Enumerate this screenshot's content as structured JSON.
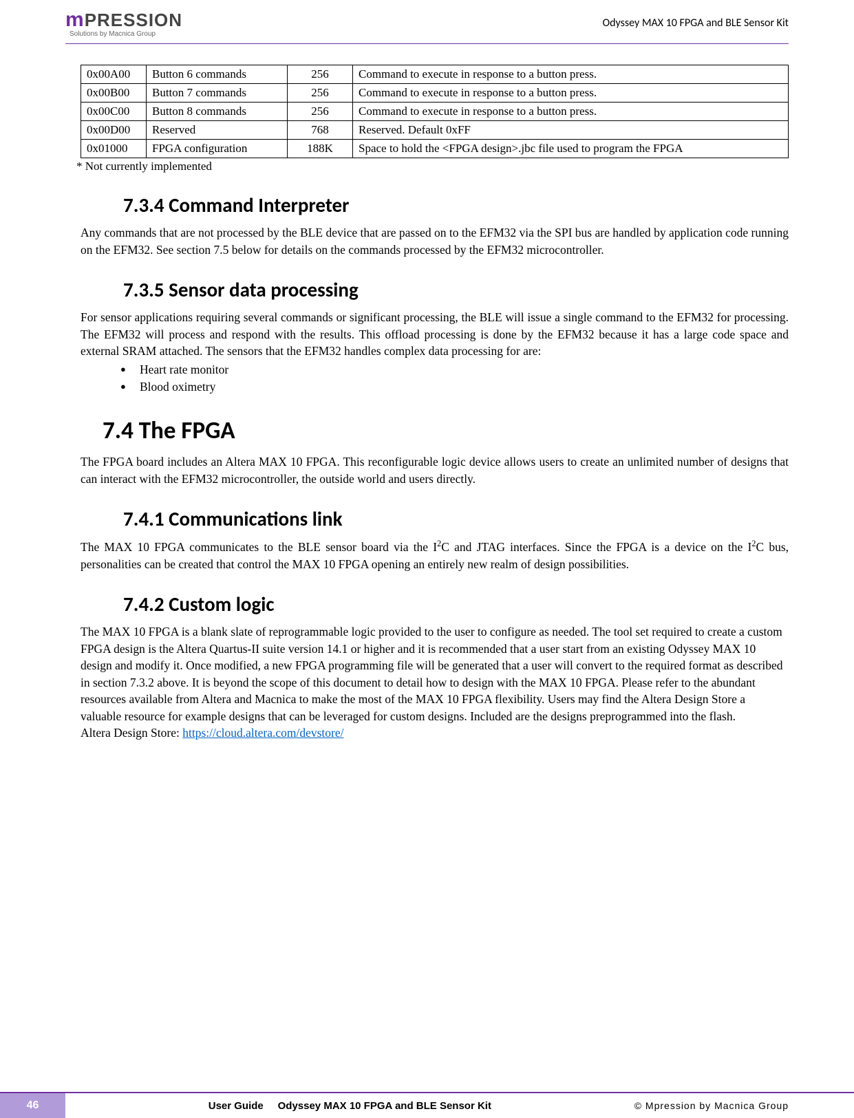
{
  "header": {
    "logo_m": "m",
    "logo_pression": "PRESSION",
    "logo_sub": "Solutions by Macnica Group",
    "title": "Odyssey MAX 10 FPGA and BLE Sensor Kit"
  },
  "table": {
    "rows": [
      {
        "addr": "0x00A00",
        "name": "Button 6 commands",
        "size": "256",
        "desc": "Command to execute in response to a button press."
      },
      {
        "addr": "0x00B00",
        "name": "Button 7 commands",
        "size": "256",
        "desc": "Command to execute in response to a button press."
      },
      {
        "addr": "0x00C00",
        "name": "Button 8 commands",
        "size": "256",
        "desc": "Command to execute in response to a button press."
      },
      {
        "addr": "0x00D00",
        "name": "Reserved",
        "size": "768",
        "desc": "Reserved. Default 0xFF"
      },
      {
        "addr": "0x01000",
        "name": "FPGA configuration",
        "size": "188K",
        "desc": "Space to hold the <FPGA design>.jbc file used to program the FPGA"
      }
    ],
    "footnote": "* Not currently implemented"
  },
  "sections": {
    "s734": {
      "title": "7.3.4  Command Interpreter",
      "body": "Any commands that are not processed by the BLE device that are passed on to the EFM32 via the SPI bus are handled by application code running on the EFM32.   See section 7.5 below for details on the commands processed by the EFM32 microcontroller."
    },
    "s735": {
      "title": "7.3.5  Sensor data processing",
      "body": "For sensor applications requiring several commands or significant processing, the BLE will issue a single command to the EFM32 for processing.   The EFM32 will process and respond with the results.   This offload processing is done by the EFM32 because it has a large code space and external SRAM attached.   The sensors that the EFM32 handles complex data processing for are:",
      "bullets": [
        "Heart rate monitor",
        "Blood oximetry"
      ]
    },
    "s74": {
      "title": "7.4    The FPGA",
      "body": "The FPGA board includes an Altera MAX 10 FPGA.   This reconfigurable logic device allows users to create an unlimited number of designs that can interact with the EFM32 microcontroller, the outside world and users directly."
    },
    "s741": {
      "title": "7.4.1  Communications link",
      "body_pre": "The MAX 10 FPGA communicates to the BLE sensor board via the I",
      "body_mid": "C and JTAG interfaces.   Since the FPGA is a device on the I",
      "body_post": "C bus, personalities can be created that control the MAX 10 FPGA opening an entirely new realm of design possibilities."
    },
    "s742": {
      "title": "7.4.2  Custom logic",
      "body": "The MAX 10 FPGA is a blank slate of reprogrammable logic provided to the user to configure as needed.   The tool set required to create a custom FPGA design is the Altera Quartus-II suite version 14.1 or higher and it is recommended that a user start from an existing Odyssey MAX 10 design and modify it.   Once modified, a new FPGA programming file will be generated that a user will convert to the required format as described in section 7.3.2 above.   It is beyond the scope of this document to detail how to design with the MAX 10 FPGA.   Please refer to the abundant resources available from Altera and Macnica to make the most of the MAX 10 FPGA flexibility.   Users may find the Altera Design Store a valuable resource for example designs that can be leveraged for custom designs.   Included are the designs preprogrammed into the flash.",
      "link_label": "Altera Design Store: ",
      "link_url": "https://cloud.altera.com/devstore/"
    }
  },
  "footer": {
    "pagenum": "46",
    "ug_label": "User Guide",
    "doc_title": "Odyssey MAX 10 FPGA and BLE Sensor Kit",
    "copyright": "©  Mpression  by  Macnica  Group"
  }
}
